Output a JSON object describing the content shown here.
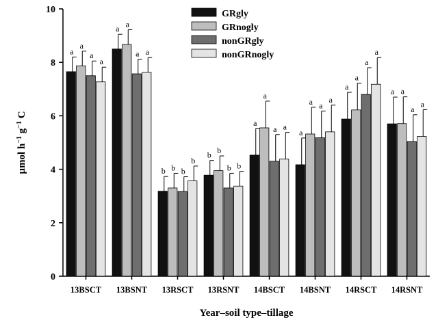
{
  "chart_data": {
    "type": "bar",
    "xlabel": "Year–soil type–tillage",
    "ylabel_main": "µmol h",
    "ylabel_sup1": "−1",
    "ylabel_mid": " g",
    "ylabel_sup2": "−1",
    "ylabel_end": " C",
    "ylim": [
      0,
      10
    ],
    "yticks": [
      "0",
      "2",
      "4",
      "6",
      "8",
      "10"
    ],
    "legend_position": "top-center",
    "categories": [
      "13BSCT",
      "13BSNT",
      "13RSCT",
      "13RSNT",
      "14BSCT",
      "14BSNT",
      "14RSCT",
      "14RSNT"
    ],
    "series": [
      {
        "name": "GRgly",
        "color": "#111111",
        "values": [
          7.65,
          8.5,
          3.18,
          3.78,
          4.53,
          4.17,
          5.88,
          5.7
        ],
        "errors": [
          0.55,
          0.55,
          0.55,
          0.55,
          1.0,
          1.0,
          1.0,
          1.0
        ],
        "labels": [
          "a",
          "a",
          "b",
          "b",
          "a",
          "a",
          "a",
          "a"
        ]
      },
      {
        "name": "GRnogly",
        "color": "#bdbdbd",
        "values": [
          7.87,
          8.67,
          3.3,
          3.95,
          5.55,
          5.32,
          6.22,
          5.71
        ],
        "errors": [
          0.55,
          0.55,
          0.55,
          0.55,
          1.0,
          1.0,
          1.0,
          1.0
        ],
        "labels": [
          "a",
          "a",
          "b",
          "b",
          "a",
          "a",
          "a",
          "a"
        ]
      },
      {
        "name": "nonGRgly",
        "color": "#6e6e6e",
        "values": [
          7.5,
          7.57,
          3.17,
          3.3,
          4.3,
          5.18,
          6.8,
          5.04
        ],
        "errors": [
          0.55,
          0.55,
          0.55,
          0.55,
          1.0,
          1.0,
          1.0,
          1.0
        ],
        "labels": [
          "a",
          "a",
          "b",
          "b",
          "a",
          "a",
          "a",
          "a"
        ]
      },
      {
        "name": "nonGRnogly",
        "color": "#e4e4e4",
        "values": [
          7.27,
          7.63,
          3.57,
          3.37,
          4.38,
          5.4,
          7.18,
          5.23
        ],
        "errors": [
          0.55,
          0.55,
          0.55,
          0.55,
          1.0,
          1.0,
          1.0,
          1.0
        ],
        "labels": [
          "a",
          "a",
          "b",
          "b",
          "a",
          "a",
          "a",
          "a"
        ]
      }
    ]
  }
}
